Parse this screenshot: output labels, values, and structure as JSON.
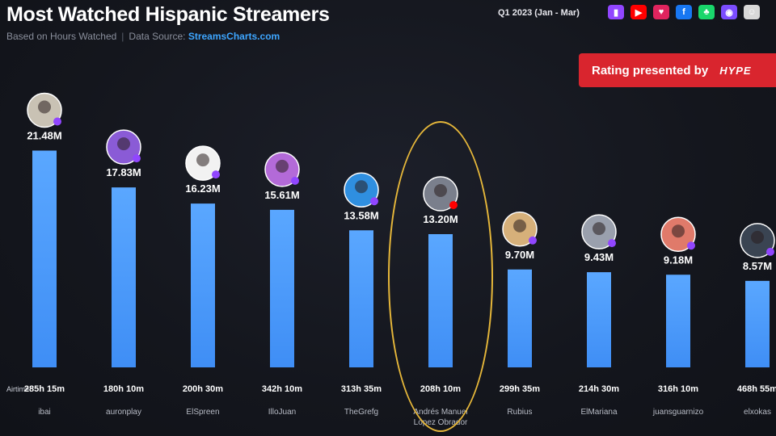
{
  "header": {
    "title": "Most Watched Hispanic Streamers",
    "subtitle": "Based on Hours Watched",
    "source_label": "Data Source:",
    "source_name": "StreamsCharts.com",
    "period": "Q1 2023 (Jan - Mar)"
  },
  "platform_icons": [
    {
      "name": "twitch-icon",
      "color": "#9146ff",
      "glyph": "▮"
    },
    {
      "name": "youtube-icon",
      "color": "#ff0000",
      "glyph": "▶"
    },
    {
      "name": "heart-icon",
      "color": "#e0245e",
      "glyph": "♥"
    },
    {
      "name": "facebook-icon",
      "color": "#1877f2",
      "glyph": "f"
    },
    {
      "name": "trovo-icon",
      "color": "#19d66b",
      "glyph": "♣"
    },
    {
      "name": "kick-icon",
      "color": "#7b4dff",
      "glyph": "◉"
    },
    {
      "name": "ghost-icon",
      "color": "#d8d8d8",
      "glyph": "☺"
    }
  ],
  "banner": {
    "text": "Rating presented by",
    "sponsor": "HYPE"
  },
  "colors": {
    "bar_top": "#5aa7ff",
    "bar_bottom": "#3f8ef5",
    "highlight": "#e6b73a"
  },
  "chart_data": {
    "type": "bar",
    "title": "",
    "xlabel": "",
    "ylabel": "",
    "ylim": [
      0,
      25
    ],
    "unit": "M",
    "airtime_label": "Airtime:",
    "categories": [
      "ibai",
      "auronplay",
      "ElSpreen",
      "IlloJuan",
      "TheGrefg",
      "Andrés Manuel López Obrador",
      "Rubius",
      "ElMariana",
      "juansguarnizo",
      "elxokas"
    ],
    "category_lines": [
      [
        "ibai"
      ],
      [
        "auronplay"
      ],
      [
        "ElSpreen"
      ],
      [
        "IlloJuan"
      ],
      [
        "TheGrefg"
      ],
      [
        "Andrés Manuel",
        "López Obrador"
      ],
      [
        "Rubius"
      ],
      [
        "ElMariana"
      ],
      [
        "juansguarnizo"
      ],
      [
        "elxokas"
      ]
    ],
    "values": [
      21.48,
      17.83,
      16.23,
      15.61,
      13.58,
      13.2,
      9.7,
      9.43,
      9.18,
      8.57
    ],
    "value_labels": [
      "21.48M",
      "17.83M",
      "16.23M",
      "15.61M",
      "13.58M",
      "13.20M",
      "9.70M",
      "9.43M",
      "9.18M",
      "8.57M"
    ],
    "airtime": [
      "285h 15m",
      "180h 10m",
      "200h 30m",
      "342h 10m",
      "313h 35m",
      "208h 10m",
      "299h 35m",
      "214h 30m",
      "316h 10m",
      "468h 55m"
    ],
    "highlighted_index": 5
  }
}
